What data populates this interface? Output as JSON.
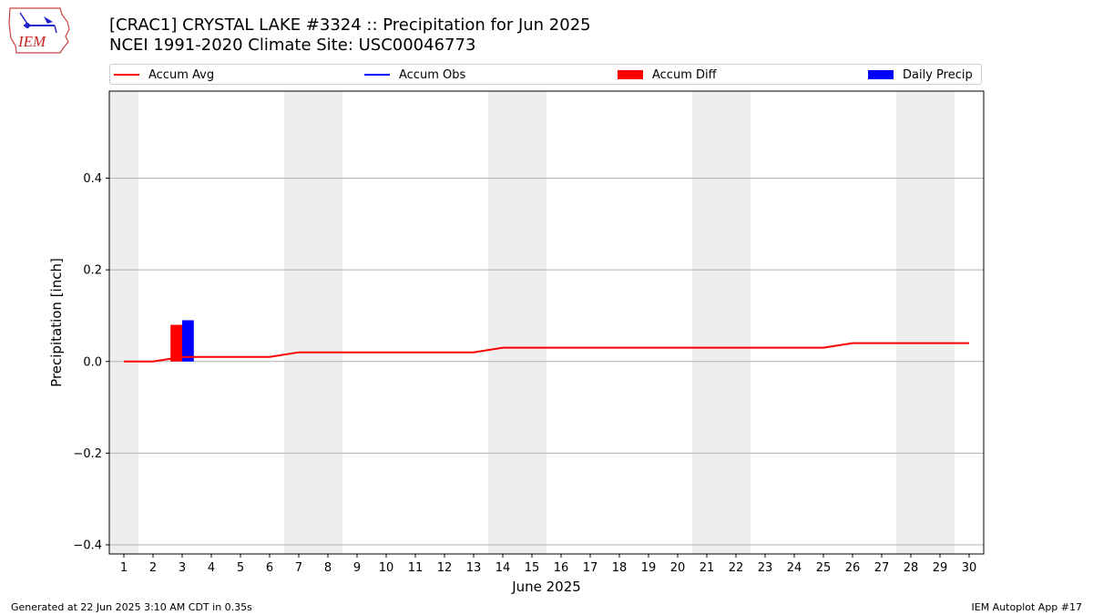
{
  "chart_data": {
    "type": "bar",
    "title": "[CRAC1] CRYSTAL LAKE #3324 :: Precipitation for Jun 2025",
    "subtitle": "NCEI 1991-2020 Climate Site: USC00046773",
    "xlabel": "June 2025",
    "ylabel": "Precipitation [inch]",
    "x": [
      1,
      2,
      3,
      4,
      5,
      6,
      7,
      8,
      9,
      10,
      11,
      12,
      13,
      14,
      15,
      16,
      17,
      18,
      19,
      20,
      21,
      22,
      23,
      24,
      25,
      26,
      27,
      28,
      29,
      30
    ],
    "xlim": [
      0.5,
      30.5
    ],
    "ylim": [
      -0.42,
      0.59
    ],
    "yticks": [
      -0.4,
      -0.2,
      0.0,
      0.2,
      0.4
    ],
    "ytick_labels": [
      "−0.4",
      "−0.2",
      "0.0",
      "0.2",
      "0.4"
    ],
    "grid": "horizontal",
    "legend_position": "top",
    "weekend_shading": [
      [
        0.5,
        1.5
      ],
      [
        6.5,
        8.5
      ],
      [
        13.5,
        15.5
      ],
      [
        20.5,
        22.5
      ],
      [
        27.5,
        29.5
      ]
    ],
    "series": [
      {
        "name": "Accum Avg",
        "kind": "line",
        "color": "#ff0000",
        "x": [
          1,
          2,
          3,
          4,
          5,
          6,
          7,
          8,
          9,
          10,
          11,
          12,
          13,
          14,
          15,
          16,
          17,
          18,
          19,
          20,
          21,
          22,
          23,
          24,
          25,
          26,
          27,
          28,
          29,
          30
        ],
        "values": [
          0.0,
          0.0,
          0.01,
          0.01,
          0.01,
          0.01,
          0.02,
          0.02,
          0.02,
          0.02,
          0.02,
          0.02,
          0.02,
          0.03,
          0.03,
          0.03,
          0.03,
          0.03,
          0.03,
          0.03,
          0.03,
          0.03,
          0.03,
          0.03,
          0.03,
          0.04,
          0.04,
          0.04,
          0.04,
          0.04
        ]
      },
      {
        "name": "Accum Obs",
        "kind": "line",
        "color": "#0000ff",
        "x": [],
        "values": []
      },
      {
        "name": "Accum Diff",
        "kind": "bar",
        "color": "#ff0000",
        "x": [
          3
        ],
        "values": [
          0.08
        ]
      },
      {
        "name": "Daily Precip",
        "kind": "bar",
        "color": "#0000ff",
        "x": [
          3
        ],
        "values": [
          0.09
        ]
      }
    ]
  },
  "footer": {
    "left": "Generated at 22 Jun 2025 3:10 AM CDT in 0.35s",
    "right": "IEM Autoplot App #17"
  },
  "logo": {
    "text": "IEM",
    "icon": "iowa-weather-station-logo",
    "color": "#cc2222"
  }
}
